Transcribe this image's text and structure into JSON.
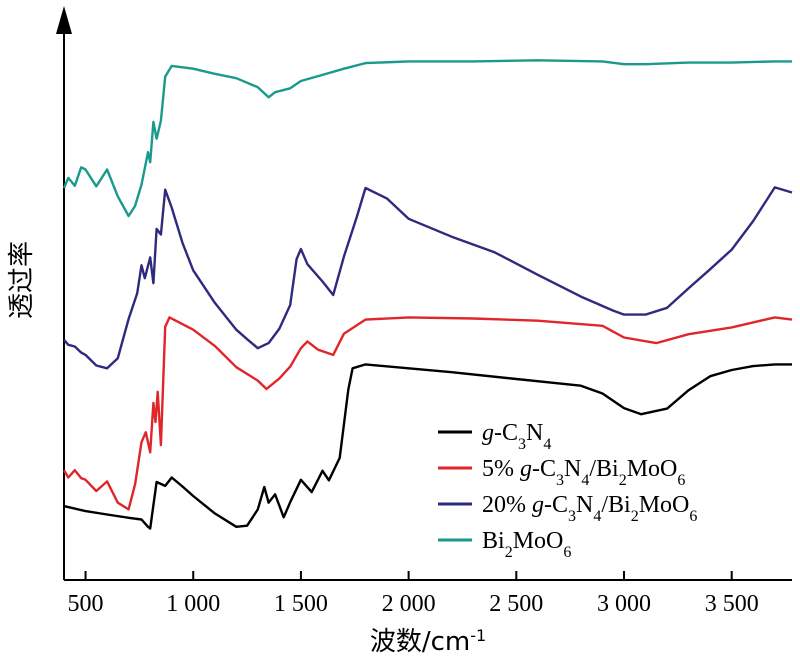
{
  "chart_data": {
    "type": "line",
    "xlabel": "波数/cm-1",
    "ylabel": "透过率",
    "xlim": [
      400,
      3780
    ],
    "xticks": [
      500,
      1000,
      1500,
      2000,
      2500,
      3000,
      3500
    ],
    "xtick_labels": [
      "500",
      "1 000",
      "1 500",
      "2 000",
      "2 500",
      "3 000",
      "3 500"
    ],
    "y_ticks_shown": false,
    "grid": false,
    "legend_position": "bottom-right",
    "series": [
      {
        "name": "g-C3N4",
        "color": "#000000",
        "points": [
          [
            400,
            0.132
          ],
          [
            500,
            0.123
          ],
          [
            600,
            0.117
          ],
          [
            700,
            0.111
          ],
          [
            760,
            0.108
          ],
          [
            790,
            0.095
          ],
          [
            800,
            0.092
          ],
          [
            830,
            0.175
          ],
          [
            870,
            0.168
          ],
          [
            900,
            0.183
          ],
          [
            950,
            0.167
          ],
          [
            1000,
            0.15
          ],
          [
            1100,
            0.119
          ],
          [
            1200,
            0.095
          ],
          [
            1250,
            0.097
          ],
          [
            1300,
            0.126
          ],
          [
            1330,
            0.166
          ],
          [
            1350,
            0.138
          ],
          [
            1380,
            0.153
          ],
          [
            1420,
            0.112
          ],
          [
            1450,
            0.139
          ],
          [
            1500,
            0.179
          ],
          [
            1550,
            0.157
          ],
          [
            1600,
            0.195
          ],
          [
            1630,
            0.178
          ],
          [
            1680,
            0.218
          ],
          [
            1720,
            0.34
          ],
          [
            1740,
            0.378
          ],
          [
            1800,
            0.385
          ],
          [
            2000,
            0.378
          ],
          [
            2200,
            0.371
          ],
          [
            2500,
            0.359
          ],
          [
            2800,
            0.347
          ],
          [
            2900,
            0.333
          ],
          [
            3000,
            0.307
          ],
          [
            3080,
            0.296
          ],
          [
            3200,
            0.306
          ],
          [
            3300,
            0.339
          ],
          [
            3400,
            0.364
          ],
          [
            3500,
            0.375
          ],
          [
            3600,
            0.382
          ],
          [
            3700,
            0.385
          ],
          [
            3780,
            0.385
          ]
        ]
      },
      {
        "name": "5% g-C3N4/Bi2MoO6",
        "color": "#e0262a",
        "points": [
          [
            400,
            0.196
          ],
          [
            420,
            0.183
          ],
          [
            450,
            0.196
          ],
          [
            480,
            0.182
          ],
          [
            500,
            0.179
          ],
          [
            550,
            0.159
          ],
          [
            600,
            0.176
          ],
          [
            650,
            0.138
          ],
          [
            700,
            0.126
          ],
          [
            730,
            0.171
          ],
          [
            760,
            0.246
          ],
          [
            780,
            0.264
          ],
          [
            800,
            0.228
          ],
          [
            815,
            0.316
          ],
          [
            825,
            0.282
          ],
          [
            835,
            0.336
          ],
          [
            850,
            0.241
          ],
          [
            870,
            0.452
          ],
          [
            890,
            0.469
          ],
          [
            1000,
            0.447
          ],
          [
            1100,
            0.418
          ],
          [
            1200,
            0.38
          ],
          [
            1300,
            0.356
          ],
          [
            1340,
            0.341
          ],
          [
            1400,
            0.36
          ],
          [
            1450,
            0.381
          ],
          [
            1500,
            0.414
          ],
          [
            1530,
            0.426
          ],
          [
            1580,
            0.411
          ],
          [
            1650,
            0.402
          ],
          [
            1700,
            0.44
          ],
          [
            1800,
            0.465
          ],
          [
            2000,
            0.469
          ],
          [
            2300,
            0.467
          ],
          [
            2600,
            0.463
          ],
          [
            2900,
            0.454
          ],
          [
            3000,
            0.433
          ],
          [
            3150,
            0.423
          ],
          [
            3300,
            0.439
          ],
          [
            3500,
            0.451
          ],
          [
            3700,
            0.469
          ],
          [
            3780,
            0.465
          ]
        ]
      },
      {
        "name": "20% g-C3N4/Bi2MoO6",
        "color": "#2e2a7e",
        "points": [
          [
            400,
            0.429
          ],
          [
            420,
            0.42
          ],
          [
            450,
            0.417
          ],
          [
            480,
            0.406
          ],
          [
            500,
            0.402
          ],
          [
            550,
            0.383
          ],
          [
            600,
            0.378
          ],
          [
            650,
            0.396
          ],
          [
            700,
            0.466
          ],
          [
            740,
            0.512
          ],
          [
            760,
            0.562
          ],
          [
            775,
            0.539
          ],
          [
            800,
            0.576
          ],
          [
            815,
            0.53
          ],
          [
            830,
            0.627
          ],
          [
            850,
            0.617
          ],
          [
            870,
            0.697
          ],
          [
            900,
            0.665
          ],
          [
            950,
            0.602
          ],
          [
            1000,
            0.553
          ],
          [
            1100,
            0.495
          ],
          [
            1200,
            0.447
          ],
          [
            1250,
            0.43
          ],
          [
            1300,
            0.414
          ],
          [
            1350,
            0.423
          ],
          [
            1400,
            0.449
          ],
          [
            1450,
            0.491
          ],
          [
            1480,
            0.573
          ],
          [
            1500,
            0.591
          ],
          [
            1530,
            0.564
          ],
          [
            1600,
            0.533
          ],
          [
            1650,
            0.509
          ],
          [
            1700,
            0.578
          ],
          [
            1760,
            0.649
          ],
          [
            1800,
            0.7
          ],
          [
            1900,
            0.681
          ],
          [
            2000,
            0.645
          ],
          [
            2200,
            0.613
          ],
          [
            2400,
            0.585
          ],
          [
            2600,
            0.545
          ],
          [
            2800,
            0.506
          ],
          [
            2950,
            0.481
          ],
          [
            3000,
            0.474
          ],
          [
            3100,
            0.474
          ],
          [
            3200,
            0.486
          ],
          [
            3300,
            0.521
          ],
          [
            3400,
            0.555
          ],
          [
            3500,
            0.59
          ],
          [
            3600,
            0.641
          ],
          [
            3700,
            0.701
          ],
          [
            3780,
            0.692
          ]
        ]
      },
      {
        "name": "Bi2MoO6",
        "color": "#1a9a8c",
        "points": [
          [
            400,
            0.7
          ],
          [
            420,
            0.718
          ],
          [
            450,
            0.704
          ],
          [
            480,
            0.737
          ],
          [
            500,
            0.733
          ],
          [
            550,
            0.703
          ],
          [
            600,
            0.733
          ],
          [
            650,
            0.685
          ],
          [
            700,
            0.65
          ],
          [
            730,
            0.668
          ],
          [
            760,
            0.706
          ],
          [
            790,
            0.764
          ],
          [
            800,
            0.746
          ],
          [
            815,
            0.818
          ],
          [
            830,
            0.788
          ],
          [
            850,
            0.82
          ],
          [
            870,
            0.899
          ],
          [
            900,
            0.918
          ],
          [
            1000,
            0.913
          ],
          [
            1100,
            0.904
          ],
          [
            1200,
            0.896
          ],
          [
            1300,
            0.88
          ],
          [
            1350,
            0.862
          ],
          [
            1380,
            0.871
          ],
          [
            1450,
            0.878
          ],
          [
            1500,
            0.891
          ],
          [
            1600,
            0.902
          ],
          [
            1700,
            0.913
          ],
          [
            1800,
            0.923
          ],
          [
            2000,
            0.926
          ],
          [
            2300,
            0.926
          ],
          [
            2600,
            0.928
          ],
          [
            2900,
            0.926
          ],
          [
            3000,
            0.921
          ],
          [
            3100,
            0.921
          ],
          [
            3300,
            0.924
          ],
          [
            3500,
            0.924
          ],
          [
            3700,
            0.926
          ],
          [
            3780,
            0.926
          ]
        ]
      }
    ]
  }
}
